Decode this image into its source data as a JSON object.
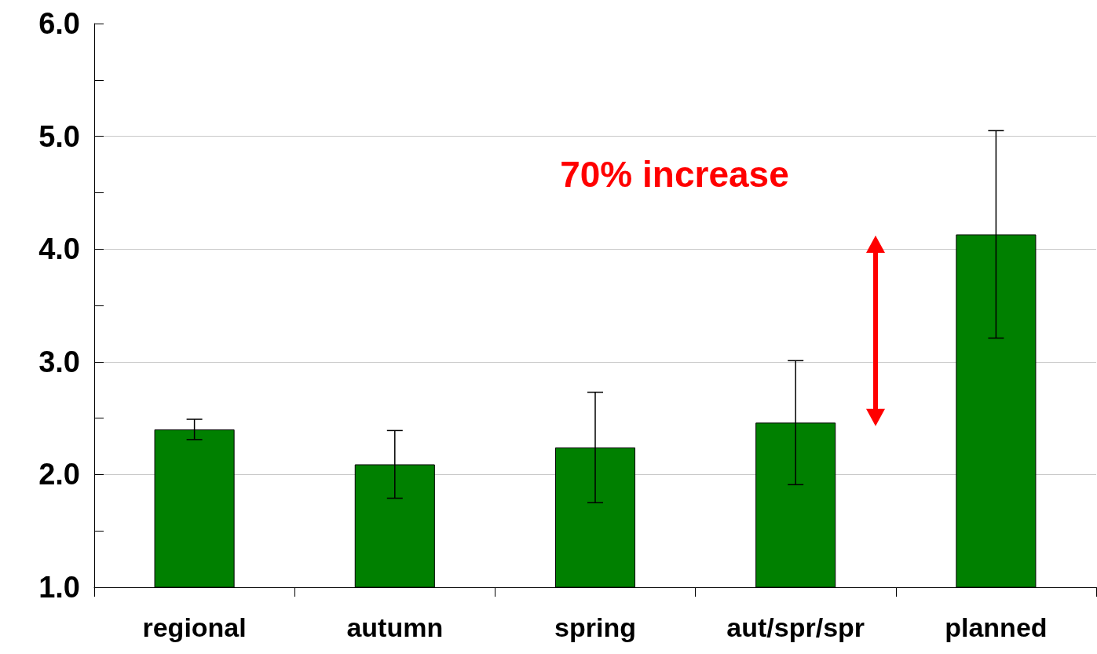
{
  "chart_data": {
    "type": "bar",
    "categories": [
      "regional",
      "autumn",
      "spring",
      "aut/spr/spr",
      "planned"
    ],
    "values": [
      2.4,
      2.09,
      2.24,
      2.46,
      4.13
    ],
    "errors": [
      0.09,
      0.3,
      0.49,
      0.55,
      0.92
    ],
    "color": "#008000",
    "ylim": [
      1.0,
      6.0
    ],
    "yticks": [
      {
        "value": 1.0,
        "label": "1.0"
      },
      {
        "value": 1.5,
        "label": null
      },
      {
        "value": 2.0,
        "label": "2.0"
      },
      {
        "value": 2.5,
        "label": null
      },
      {
        "value": 3.0,
        "label": "3.0"
      },
      {
        "value": 3.5,
        "label": null
      },
      {
        "value": 4.0,
        "label": "4.0"
      },
      {
        "value": 4.5,
        "label": null
      },
      {
        "value": 5.0,
        "label": "5.0"
      },
      {
        "value": 5.5,
        "label": null
      },
      {
        "value": 6.0,
        "label": "6.0"
      }
    ],
    "grid": "y",
    "annotations": [
      "70% increase"
    ]
  }
}
